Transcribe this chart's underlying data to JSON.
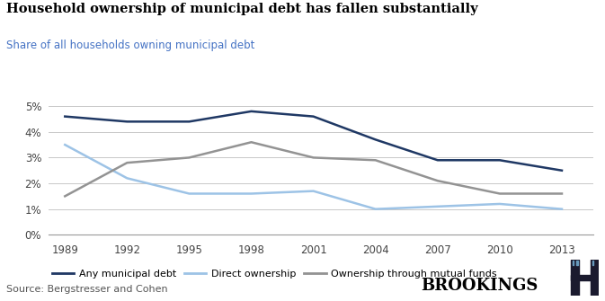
{
  "title": "Household ownership of municipal debt has fallen substantially",
  "subtitle": "Share of all households owning municipal debt",
  "source": "Source: Bergstresser and Cohen",
  "years": [
    1989,
    1992,
    1995,
    1998,
    2001,
    2004,
    2007,
    2010,
    2013
  ],
  "any_muni": [
    0.046,
    0.044,
    0.044,
    0.048,
    0.046,
    0.037,
    0.029,
    0.029,
    0.025
  ],
  "direct": [
    0.035,
    0.022,
    0.016,
    0.016,
    0.017,
    0.01,
    0.011,
    0.012,
    0.01
  ],
  "mutual_funds": [
    0.015,
    0.028,
    0.03,
    0.036,
    0.03,
    0.029,
    0.021,
    0.016,
    0.016
  ],
  "color_any": "#1f3864",
  "color_direct": "#9dc3e6",
  "color_mutual": "#939393",
  "ylim": [
    0,
    0.055
  ],
  "yticks": [
    0,
    0.01,
    0.02,
    0.03,
    0.04,
    0.05
  ],
  "ytick_labels": [
    "0%",
    "1%",
    "2%",
    "3%",
    "4%",
    "5%"
  ],
  "legend_labels": [
    "Any municipal debt",
    "Direct ownership",
    "Ownership through mutual funds"
  ],
  "subtitle_color": "#4472c4",
  "background_color": "#ffffff",
  "grid_color": "#c8c8c8"
}
